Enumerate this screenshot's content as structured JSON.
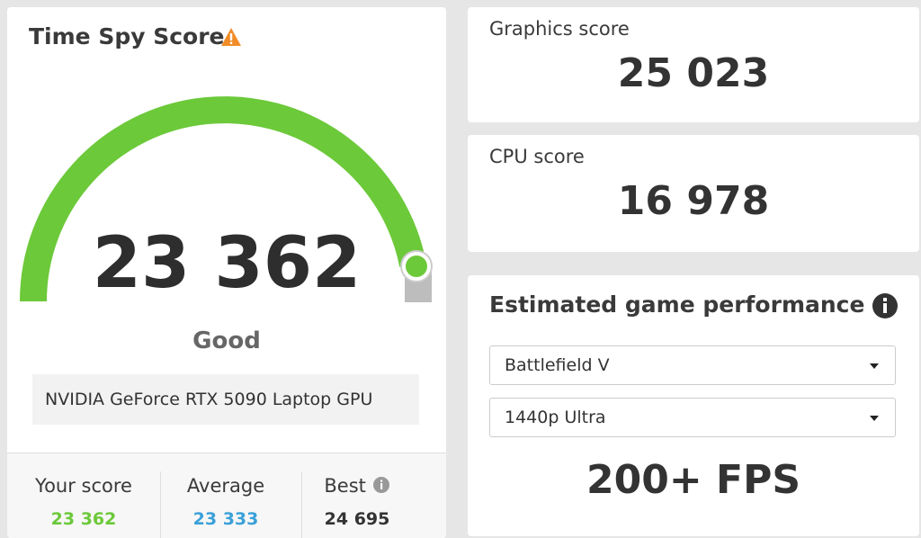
{
  "score_card": {
    "title": "Time Spy Score",
    "score": "23 362",
    "rating": "Good",
    "gpu": "NVIDIA GeForce RTX 5090 Laptop GPU",
    "summary": [
      {
        "label": "Your score",
        "value": "23 362"
      },
      {
        "label": "Average",
        "value": "23 333"
      },
      {
        "label": "Best",
        "value": "24 695"
      }
    ]
  },
  "graphics": {
    "label": "Graphics score",
    "score": "25 023"
  },
  "cpu": {
    "label": "CPU score",
    "score": "16 978"
  },
  "game_performance": {
    "title": "Estimated game performance",
    "game": "Battlefield V",
    "preset": "1440p Ultra",
    "fps": "200+ FPS"
  }
}
